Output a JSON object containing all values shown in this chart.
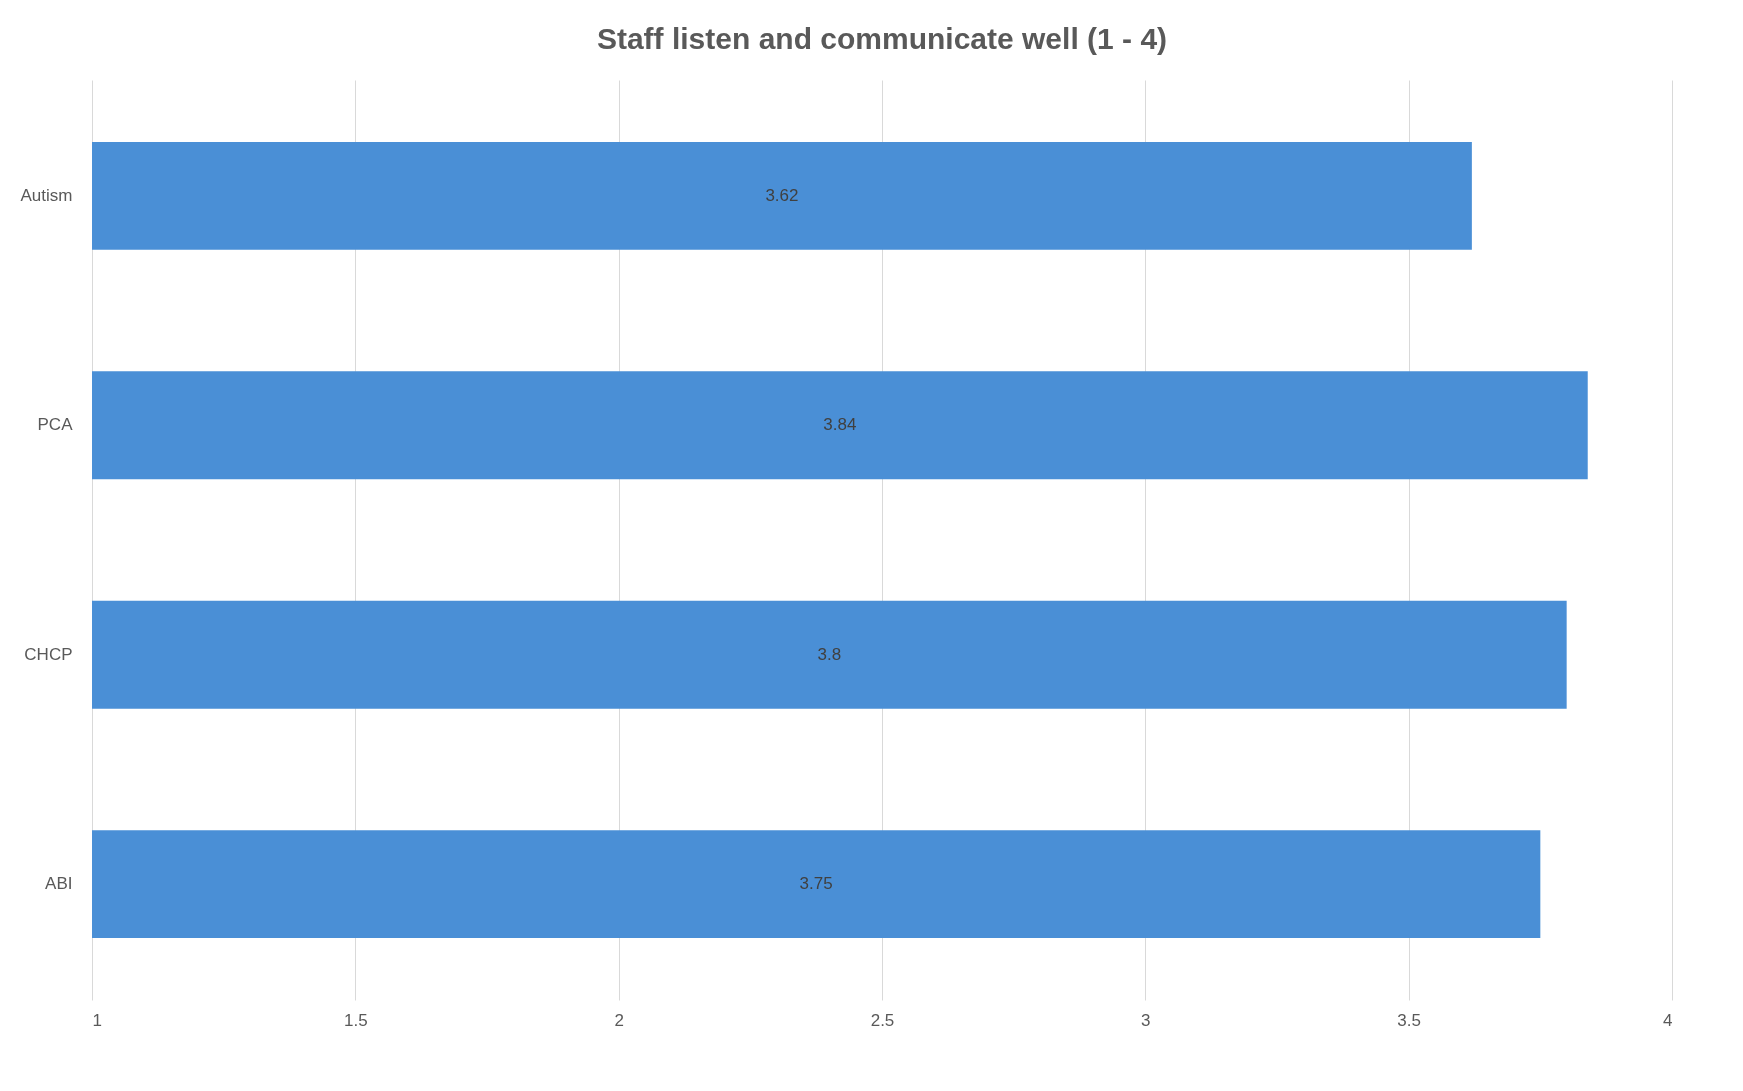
{
  "chart_data": {
    "type": "bar",
    "orientation": "horizontal",
    "title": "Staff listen and communicate well (1 - 4)",
    "categories": [
      "Autism",
      "PCA",
      "CHCP",
      "ABI"
    ],
    "values": [
      3.62,
      3.84,
      3.8,
      3.75
    ],
    "color": "#4a8fd6",
    "xlim": [
      1,
      4
    ],
    "xticks": [
      1,
      1.5,
      2,
      2.5,
      3,
      3.5,
      4
    ],
    "grid": "x",
    "data_labels": true
  }
}
